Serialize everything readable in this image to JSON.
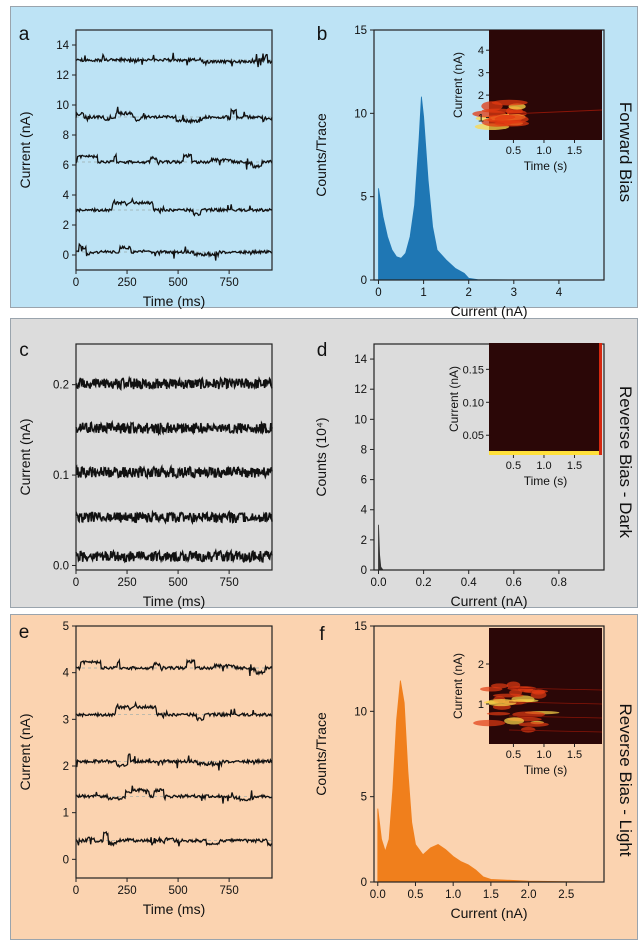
{
  "colors": {
    "forward_bg": "#bde3f5",
    "dark_bg": "#dcdcdc",
    "light_bg": "#fbd3b0",
    "forward_hist": "#1f77b4",
    "light_hist": "#f07f1c",
    "trace": "#111111",
    "inset_bg": "#2b0707"
  },
  "rows": [
    {
      "side_label": "Forward Bias",
      "left": {
        "letter": "a",
        "xlabel": "Time (ms)",
        "ylabel": "Current (nA)"
      },
      "right": {
        "letter": "b",
        "xlabel": "Current (nA)",
        "ylabel": "Counts/Trace",
        "inset": {
          "xlabel": "Time (s)",
          "ylabel": "Current (nA)"
        }
      }
    },
    {
      "side_label": "Reverse Bias - Dark",
      "left": {
        "letter": "c",
        "xlabel": "Time (ms)",
        "ylabel": "Current (nA)"
      },
      "right": {
        "letter": "d",
        "xlabel": "Current (nA)",
        "ylabel": "Counts (10⁴)",
        "inset": {
          "xlabel": "Time (s)",
          "ylabel": "Current (nA)"
        }
      }
    },
    {
      "side_label": "Reverse Bias - Light",
      "left": {
        "letter": "e",
        "xlabel": "Time (ms)",
        "ylabel": "Current (nA)"
      },
      "right": {
        "letter": "f",
        "xlabel": "Current (nA)",
        "ylabel": "Counts/Trace",
        "inset": {
          "xlabel": "Time (s)",
          "ylabel": "Current (nA)"
        }
      }
    }
  ],
  "chart_data": [
    {
      "id": "a",
      "type": "line",
      "xlabel": "Time (ms)",
      "ylabel": "Current (nA)",
      "xlim": [
        0,
        960
      ],
      "ylim": [
        -1,
        15
      ],
      "xticks": [
        "0",
        "250",
        "500",
        "750"
      ],
      "yticks": [
        "0",
        "2",
        "4",
        "6",
        "8",
        "10",
        "12",
        "14"
      ],
      "traces": [
        {
          "baseline": 0.2
        },
        {
          "baseline": 3.0
        },
        {
          "baseline": 6.2
        },
        {
          "baseline": 9.2
        },
        {
          "baseline": 13.0
        }
      ]
    },
    {
      "id": "b",
      "type": "area",
      "xlabel": "Current (nA)",
      "ylabel": "Counts/Trace",
      "xlim": [
        -0.1,
        5.0
      ],
      "ylim": [
        0,
        15
      ],
      "xticks": [
        "0",
        "1",
        "2",
        "3",
        "4"
      ],
      "yticks": [
        "0",
        "5",
        "10",
        "15"
      ],
      "x": [
        0,
        0.1,
        0.2,
        0.3,
        0.4,
        0.5,
        0.6,
        0.7,
        0.8,
        0.9,
        0.95,
        1.0,
        1.1,
        1.2,
        1.3,
        1.5,
        1.7,
        1.9,
        2.0,
        2.2,
        3.0,
        4.9
      ],
      "values": [
        5.5,
        3.8,
        2.6,
        1.8,
        1.4,
        1.3,
        1.6,
        2.6,
        4.5,
        8.5,
        11.0,
        9.8,
        6.0,
        3.2,
        1.8,
        1.2,
        0.7,
        0.4,
        0.1,
        0.02,
        0,
        0
      ],
      "inset": {
        "type": "heatmap",
        "xlabel": "Time (s)",
        "ylabel": "Current (nA)",
        "xticks": [
          "0.5",
          "1.0",
          "1.5"
        ],
        "yticks": [
          "1",
          "2",
          "3",
          "4"
        ]
      }
    },
    {
      "id": "c",
      "type": "line",
      "xlabel": "Time (ms)",
      "ylabel": "Current (nA)",
      "xlim": [
        0,
        960
      ],
      "ylim": [
        -0.005,
        0.245
      ],
      "xticks": [
        "0",
        "250",
        "500",
        "750"
      ],
      "yticks": [
        "0.0",
        "0.1",
        "0.2"
      ],
      "traces": [
        {
          "baseline": 0.01
        },
        {
          "baseline": 0.053
        },
        {
          "baseline": 0.103
        },
        {
          "baseline": 0.152
        },
        {
          "baseline": 0.201
        }
      ]
    },
    {
      "id": "d",
      "type": "area",
      "xlabel": "Current (nA)",
      "ylabel": "Counts (10⁴)",
      "xlim": [
        -0.02,
        1.0
      ],
      "ylim": [
        0,
        15
      ],
      "xticks": [
        "0.0",
        "0.2",
        "0.4",
        "0.6",
        "0.8"
      ],
      "yticks": [
        "0",
        "2",
        "4",
        "6",
        "8",
        "10",
        "12",
        "14"
      ],
      "x": [
        0,
        0.005,
        0.01,
        0.02,
        0.98
      ],
      "values": [
        3.0,
        1.0,
        0.2,
        0,
        0
      ],
      "inset": {
        "type": "heatmap",
        "xlabel": "Time (s)",
        "ylabel": "Current (nA)",
        "xticks": [
          "0.5",
          "1.0",
          "1.5"
        ],
        "yticks": [
          "0.05",
          "0.10",
          "0.15"
        ]
      }
    },
    {
      "id": "e",
      "type": "line",
      "xlabel": "Time (ms)",
      "ylabel": "Current (nA)",
      "xlim": [
        0,
        960
      ],
      "ylim": [
        -0.4,
        5
      ],
      "xticks": [
        "0",
        "250",
        "500",
        "750"
      ],
      "yticks": [
        "0",
        "1",
        "2",
        "3",
        "4",
        "5"
      ],
      "traces": [
        {
          "baseline": 0.4
        },
        {
          "baseline": 1.35
        },
        {
          "baseline": 2.1
        },
        {
          "baseline": 3.1
        },
        {
          "baseline": 4.1
        }
      ]
    },
    {
      "id": "f",
      "type": "area",
      "xlabel": "Current (nA)",
      "ylabel": "Counts/Trace",
      "xlim": [
        -0.05,
        3.0
      ],
      "ylim": [
        0,
        15
      ],
      "xticks": [
        "0.0",
        "0.5",
        "1.0",
        "1.5",
        "2.0",
        "2.5"
      ],
      "yticks": [
        "0",
        "5",
        "10",
        "15"
      ],
      "x": [
        0,
        0.05,
        0.1,
        0.15,
        0.2,
        0.25,
        0.3,
        0.35,
        0.4,
        0.45,
        0.5,
        0.6,
        0.7,
        0.8,
        0.9,
        1.0,
        1.1,
        1.2,
        1.3,
        1.4,
        1.5,
        2.0,
        2.9
      ],
      "values": [
        4.3,
        2.5,
        1.8,
        2.5,
        5.5,
        9.5,
        11.8,
        10.5,
        6.5,
        3.5,
        2.2,
        1.6,
        2.0,
        2.2,
        1.9,
        1.5,
        1.2,
        1.0,
        0.7,
        0.3,
        0.15,
        0.05,
        0
      ],
      "inset": {
        "type": "heatmap",
        "xlabel": "Time (s)",
        "ylabel": "Current (nA)",
        "xticks": [
          "0.5",
          "1.0",
          "1.5"
        ],
        "yticks": [
          "1",
          "2"
        ]
      }
    }
  ]
}
